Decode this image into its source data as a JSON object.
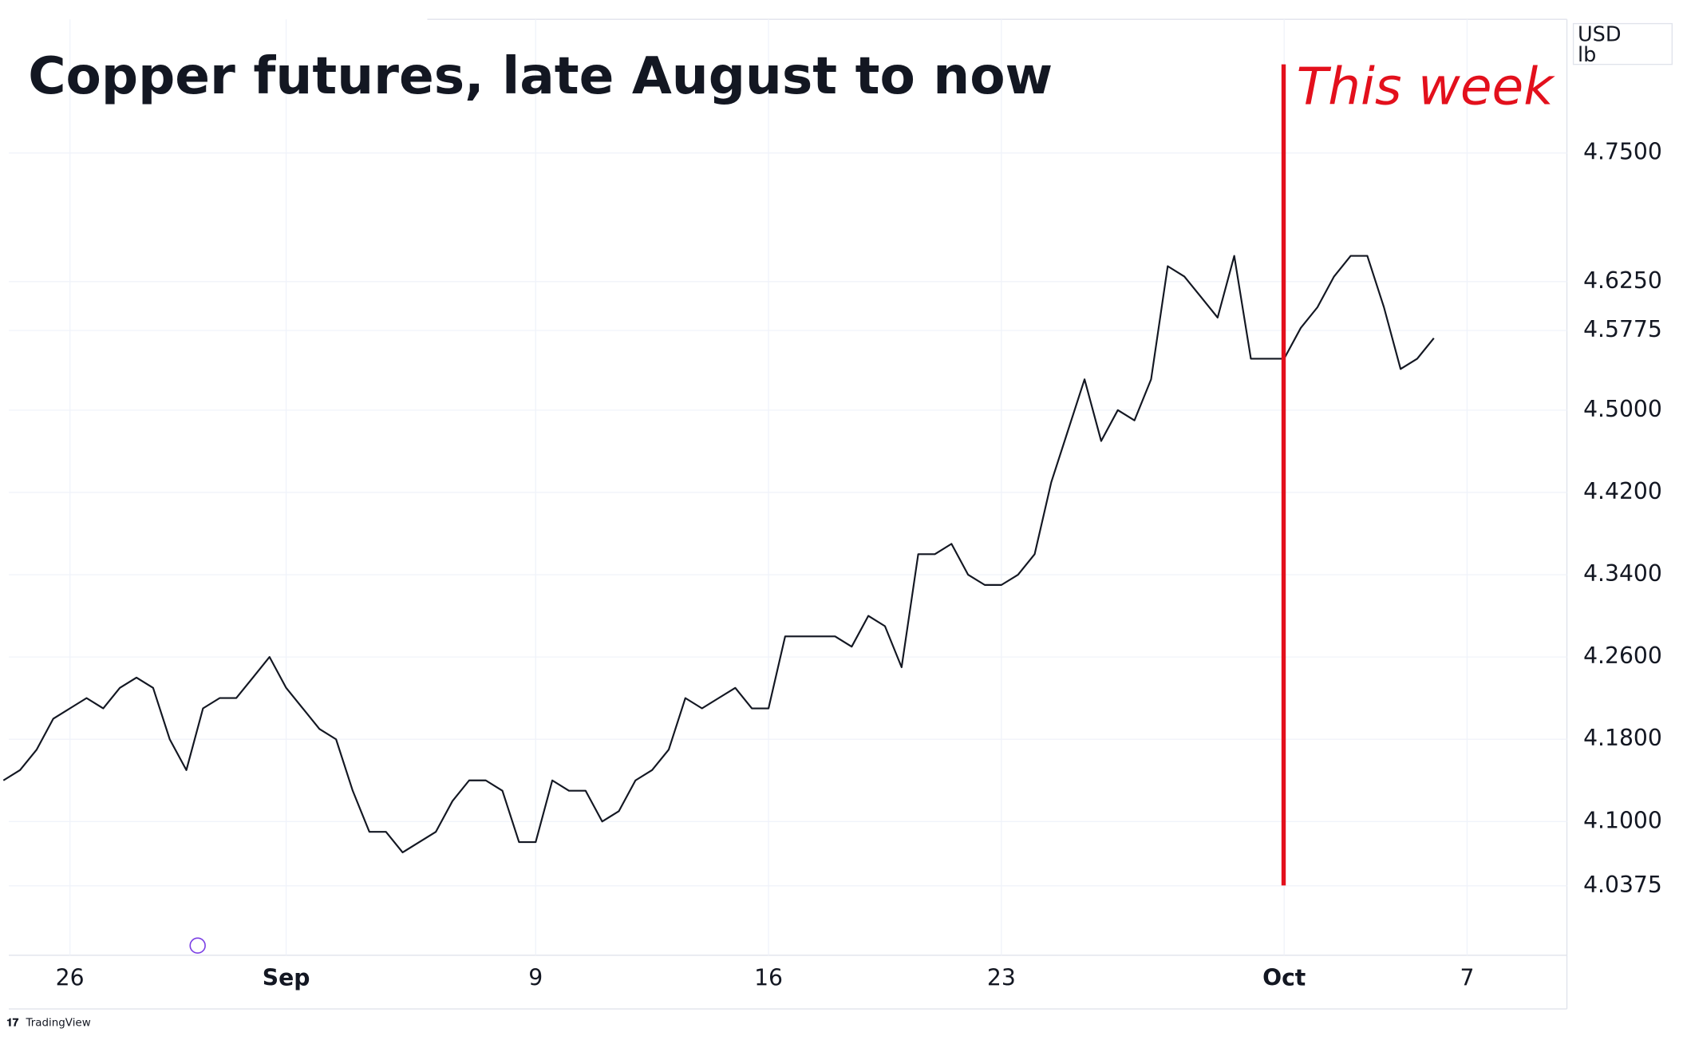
{
  "chart_data": {
    "type": "line",
    "title": "Copper futures, late August to now",
    "annotation": "This week",
    "currency": "USD",
    "unit": "lb",
    "source": "TradingView",
    "categories": [
      null,
      null,
      null,
      null,
      "26",
      null,
      null,
      null,
      null,
      null,
      null,
      null,
      null,
      null,
      null,
      null,
      null,
      "Sep",
      null,
      null,
      null,
      null,
      null,
      null,
      null,
      null,
      null,
      null,
      null,
      null,
      null,
      null,
      "9",
      null,
      null,
      null,
      null,
      null,
      null,
      null,
      null,
      null,
      null,
      null,
      null,
      null,
      "16",
      null,
      null,
      null,
      null,
      null,
      null,
      null,
      null,
      null,
      null,
      null,
      null,
      null,
      "23",
      null,
      null,
      null,
      null,
      null,
      null,
      null,
      null,
      null,
      null,
      null,
      null,
      null,
      null,
      null,
      null,
      "Oct",
      null,
      null,
      null,
      null,
      null,
      null,
      null,
      null,
      null,
      null,
      "7"
    ],
    "series": [
      {
        "color": "#131722",
        "values": [
          4.14,
          4.15,
          4.17,
          4.2,
          4.21,
          4.22,
          4.21,
          4.23,
          4.24,
          4.23,
          4.18,
          4.15,
          4.21,
          4.22,
          4.22,
          4.24,
          4.26,
          4.23,
          4.21,
          4.19,
          4.18,
          4.13,
          4.09,
          4.09,
          4.07,
          4.08,
          4.09,
          4.12,
          4.14,
          4.14,
          4.13,
          4.08,
          4.08,
          4.14,
          4.13,
          4.13,
          4.1,
          4.11,
          4.14,
          4.15,
          4.17,
          4.22,
          4.21,
          4.22,
          4.23,
          4.21,
          4.21,
          4.28,
          4.28,
          4.28,
          4.28,
          4.27,
          4.3,
          4.29,
          4.25,
          4.36,
          4.36,
          4.37,
          4.34,
          4.33,
          4.33,
          4.34,
          4.36,
          4.43,
          4.48,
          4.53,
          4.47,
          4.5,
          4.49,
          4.53,
          4.64,
          4.63,
          4.61,
          4.59,
          4.65,
          4.55,
          4.55,
          4.55,
          4.58,
          4.6,
          4.63,
          4.65,
          4.65,
          4.6,
          4.54,
          4.55,
          4.57,
          null,
          null
        ]
      }
    ],
    "ylim": [
      3.97,
      4.88
    ],
    "yticks": [
      {
        "value": 4.75,
        "label": "4.7500"
      },
      {
        "value": 4.625,
        "label": "4.6250"
      },
      {
        "value": 4.5775,
        "label": "4.5775"
      },
      {
        "value": 4.5,
        "label": "4.5000"
      },
      {
        "value": 4.42,
        "label": "4.4200"
      },
      {
        "value": 4.34,
        "label": "4.3400"
      },
      {
        "value": 4.26,
        "label": "4.2600"
      },
      {
        "value": 4.18,
        "label": "4.1800"
      },
      {
        "value": 4.1,
        "label": "4.1000"
      },
      {
        "value": 4.0375,
        "label": "4.0375"
      }
    ],
    "grid": true
  }
}
